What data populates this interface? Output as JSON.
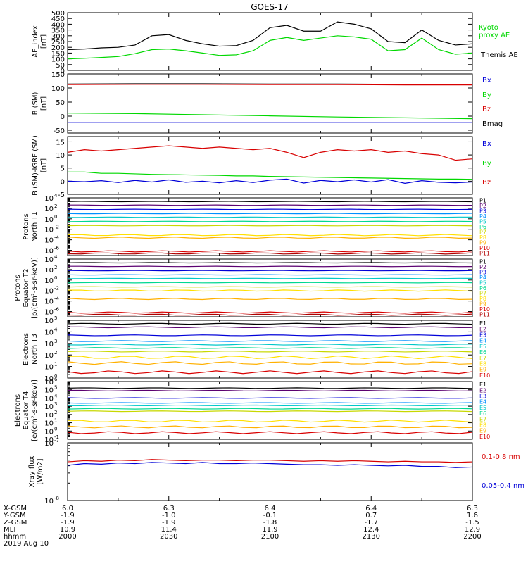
{
  "title": "GOES-17",
  "date_label": "2019 Aug 10",
  "orbit": {
    "rows": [
      {
        "label": "X-GSM",
        "values": [
          "6.0",
          "6.3",
          "6.4",
          "6.4",
          "6.3"
        ]
      },
      {
        "label": "Y-GSM",
        "values": [
          "-1.9",
          "-1.0",
          "-0.1",
          "0.7",
          "1.6"
        ]
      },
      {
        "label": "Z-GSM",
        "values": [
          "-1.9",
          "-1.9",
          "-1.8",
          "-1.7",
          "-1.5"
        ]
      },
      {
        "label": "MLT",
        "values": [
          "10.9",
          "11.4",
          "11.9",
          "12.4",
          "12.9"
        ]
      },
      {
        "label": "hhmm",
        "values": [
          "2000",
          "2030",
          "2100",
          "2130",
          "2200"
        ]
      }
    ]
  },
  "colors": {
    "black": "#000000",
    "green": "#00d800",
    "red": "#d80000",
    "blue": "#0000d8",
    "protons": [
      "#000000",
      "#5b0070",
      "#0000d8",
      "#0090ff",
      "#00c8c8",
      "#00d890",
      "#c8d800",
      "#ffe000",
      "#ffb000",
      "#d80000",
      "#b00000"
    ],
    "electrons": [
      "#000000",
      "#5b0070",
      "#0000d8",
      "#0090ff",
      "#00c8c8",
      "#00d890",
      "#c8d800",
      "#ffe000",
      "#ffb000",
      "#d80000"
    ]
  },
  "chart_data": [
    {
      "id": "ae",
      "type": "line",
      "ylabel": "AE_index [nT]",
      "ylim": [
        0,
        500
      ],
      "yticks": [
        "0",
        "50",
        "100",
        "150",
        "200",
        "250",
        "300",
        "350",
        "400",
        "450",
        "500"
      ],
      "legend": [
        "Kyoto proxy AE",
        "Themis AE"
      ],
      "x": [
        0,
        5,
        10,
        15,
        20,
        25,
        30,
        35,
        40,
        45,
        50,
        55,
        60,
        65,
        70,
        75,
        80,
        85,
        90,
        95,
        100,
        105,
        110,
        115,
        120
      ],
      "series": [
        {
          "name": "Themis AE",
          "color": "black",
          "values": [
            180,
            185,
            195,
            200,
            220,
            300,
            310,
            260,
            230,
            210,
            215,
            260,
            370,
            390,
            340,
            340,
            420,
            400,
            360,
            250,
            240,
            350,
            260,
            220,
            230
          ]
        },
        {
          "name": "Kyoto proxy AE",
          "color": "green",
          "values": [
            100,
            105,
            112,
            120,
            145,
            180,
            185,
            170,
            150,
            130,
            135,
            170,
            260,
            285,
            260,
            280,
            300,
            290,
            270,
            170,
            180,
            280,
            180,
            140,
            150
          ]
        }
      ]
    },
    {
      "id": "bsm",
      "type": "line",
      "ylabel": "B (SM) [nT]",
      "ylim": [
        -60,
        150
      ],
      "yticks": [
        "-50",
        "0",
        "50",
        "100",
        "150"
      ],
      "legend": [
        "Bx",
        "By",
        "Bz",
        "Bmag"
      ],
      "x": [
        0,
        20,
        40,
        60,
        80,
        100,
        120
      ],
      "series": [
        {
          "name": "Bmag",
          "color": "black",
          "values": [
            114,
            115,
            115,
            114,
            114,
            113,
            113
          ]
        },
        {
          "name": "Bz",
          "color": "red",
          "values": [
            112,
            113,
            113,
            112,
            112,
            111,
            111
          ]
        },
        {
          "name": "By",
          "color": "green",
          "values": [
            11,
            9,
            5,
            1,
            -3,
            -6,
            -9
          ]
        },
        {
          "name": "Bx",
          "color": "blue",
          "values": [
            -22,
            -22,
            -22,
            -22,
            -22,
            -22,
            -22
          ]
        }
      ]
    },
    {
      "id": "bigrf",
      "type": "line",
      "ylabel": "B (SM)-IGRF (SM) [nT]",
      "ylim": [
        -5,
        17
      ],
      "yticks": [
        "-5",
        "0",
        "5",
        "10",
        "15"
      ],
      "legend": [
        "Bx",
        "By",
        "Bz"
      ],
      "x": [
        0,
        5,
        10,
        15,
        20,
        25,
        30,
        35,
        40,
        45,
        50,
        55,
        60,
        65,
        70,
        75,
        80,
        85,
        90,
        95,
        100,
        105,
        110,
        115,
        120
      ],
      "series": [
        {
          "name": "Bz",
          "color": "red",
          "values": [
            11,
            12,
            11.5,
            12,
            12.5,
            13,
            13.5,
            13,
            12.5,
            13,
            12.5,
            12,
            12.5,
            11,
            9,
            11,
            12,
            11.5,
            12,
            11,
            11.5,
            10.5,
            10,
            8,
            8.5
          ]
        },
        {
          "name": "By",
          "color": "green",
          "values": [
            3.5,
            3.5,
            3,
            3,
            2.8,
            2.6,
            2.5,
            2.4,
            2.3,
            2.2,
            2,
            2,
            1.8,
            1.7,
            1.6,
            1.5,
            1.4,
            1.3,
            1.2,
            1.1,
            1,
            0.9,
            0.8,
            0.8,
            0.7
          ]
        },
        {
          "name": "Bx",
          "color": "blue",
          "values": [
            0,
            -0.2,
            0.2,
            -0.5,
            0.3,
            -0.3,
            0.5,
            -0.4,
            0,
            -0.6,
            0.2,
            -0.5,
            0.4,
            0.8,
            -0.7,
            0.3,
            -0.2,
            0.5,
            -0.3,
            0.6,
            -0.8,
            0.2,
            -0.4,
            -0.6,
            -0.3
          ]
        }
      ]
    },
    {
      "id": "p_north",
      "type": "line",
      "ylabel": "Protons North T1",
      "ylim": [
        -7,
        4
      ],
      "log": true,
      "yticks": [
        "10^4",
        "10^2",
        "10^0",
        "10^-2",
        "10^-4",
        "10^-6"
      ],
      "legend": [
        "P1",
        "P2",
        "P3",
        "P4",
        "P5",
        "P6",
        "P7",
        "P8",
        "P9",
        "P10",
        "P11"
      ],
      "levels": [
        3.3,
        2.6,
        1.8,
        1.0,
        0.3,
        -0.5,
        -1.3,
        -3.1,
        -3.6,
        -6.2,
        -6.6
      ]
    },
    {
      "id": "p_equator",
      "type": "line",
      "ylabel": "Protons Equator T2 [p/(cm²-s-sr-keV)]",
      "ylim": [
        -7,
        4
      ],
      "log": true,
      "yticks": [
        "10^4",
        "10^2",
        "10^0",
        "10^-2",
        "10^-4",
        "10^-6"
      ],
      "legend": [
        "P1",
        "P2",
        "P3",
        "P4",
        "P5",
        "P6",
        "P7",
        "P8",
        "P9",
        "P10",
        "P11"
      ],
      "levels": [
        3.3,
        2.6,
        1.8,
        1.0,
        0.3,
        -0.5,
        -1.3,
        -2.0,
        -3.6,
        -6.2,
        -6.6
      ]
    },
    {
      "id": "e_north",
      "type": "line",
      "ylabel": "Electrons North T3",
      "ylim": [
        0,
        5
      ],
      "log": true,
      "yticks": [
        "10^5",
        "10^4",
        "10^3",
        "10^2",
        "10^1",
        "10^0"
      ],
      "legend": [
        "E1",
        "E2",
        "E3",
        "E4",
        "E5",
        "E6",
        "E7",
        "E8",
        "E9",
        "E10"
      ],
      "levels": [
        4.7,
        4.4,
        3.7,
        3.2,
        2.9,
        2.6,
        2.3,
        1.8,
        1.3,
        0.5
      ]
    },
    {
      "id": "e_equator",
      "type": "line",
      "ylabel": "Electrons Equator T4 [e/(cm²-s-sr-keV)]",
      "ylim": [
        -1,
        6
      ],
      "log": true,
      "yticks": [
        "10^6",
        "10^5",
        "10^4",
        "10^3",
        "10^2",
        "10^1",
        "10^0",
        "10^-1"
      ],
      "legend": [
        "E1",
        "E2",
        "E3",
        "E4",
        "E5",
        "E6",
        "E7",
        "E8",
        "E9",
        "E10"
      ],
      "levels": [
        5.2,
        4.9,
        4.0,
        3.4,
        3.1,
        2.7,
        2.4,
        1.2,
        0.5,
        -0.2
      ]
    },
    {
      "id": "xray",
      "type": "line",
      "ylabel": "Xray flux [W/m2]",
      "ylim": [
        -8,
        -7
      ],
      "log": true,
      "yticks": [
        "10^-7",
        "10^-8"
      ],
      "legend": [
        "0.1-0.8 nm",
        "0.05-0.4 nm"
      ],
      "x": [
        0,
        5,
        10,
        15,
        20,
        25,
        30,
        35,
        40,
        45,
        50,
        55,
        60,
        65,
        70,
        75,
        80,
        85,
        90,
        95,
        100,
        105,
        110,
        115,
        120
      ],
      "series": [
        {
          "name": "0.1-0.8 nm",
          "color": "red",
          "values": [
            -7.33,
            -7.31,
            -7.32,
            -7.3,
            -7.31,
            -7.29,
            -7.3,
            -7.31,
            -7.3,
            -7.3,
            -7.31,
            -7.3,
            -7.3,
            -7.31,
            -7.32,
            -7.31,
            -7.32,
            -7.31,
            -7.32,
            -7.33,
            -7.32,
            -7.33,
            -7.33,
            -7.34,
            -7.33
          ]
        },
        {
          "name": "0.05-0.4 nm",
          "color": "blue",
          "values": [
            -7.39,
            -7.36,
            -7.37,
            -7.35,
            -7.36,
            -7.34,
            -7.35,
            -7.36,
            -7.34,
            -7.36,
            -7.36,
            -7.35,
            -7.36,
            -7.37,
            -7.38,
            -7.38,
            -7.39,
            -7.38,
            -7.39,
            -7.4,
            -7.39,
            -7.41,
            -7.41,
            -7.43,
            -7.42
          ]
        }
      ]
    }
  ]
}
